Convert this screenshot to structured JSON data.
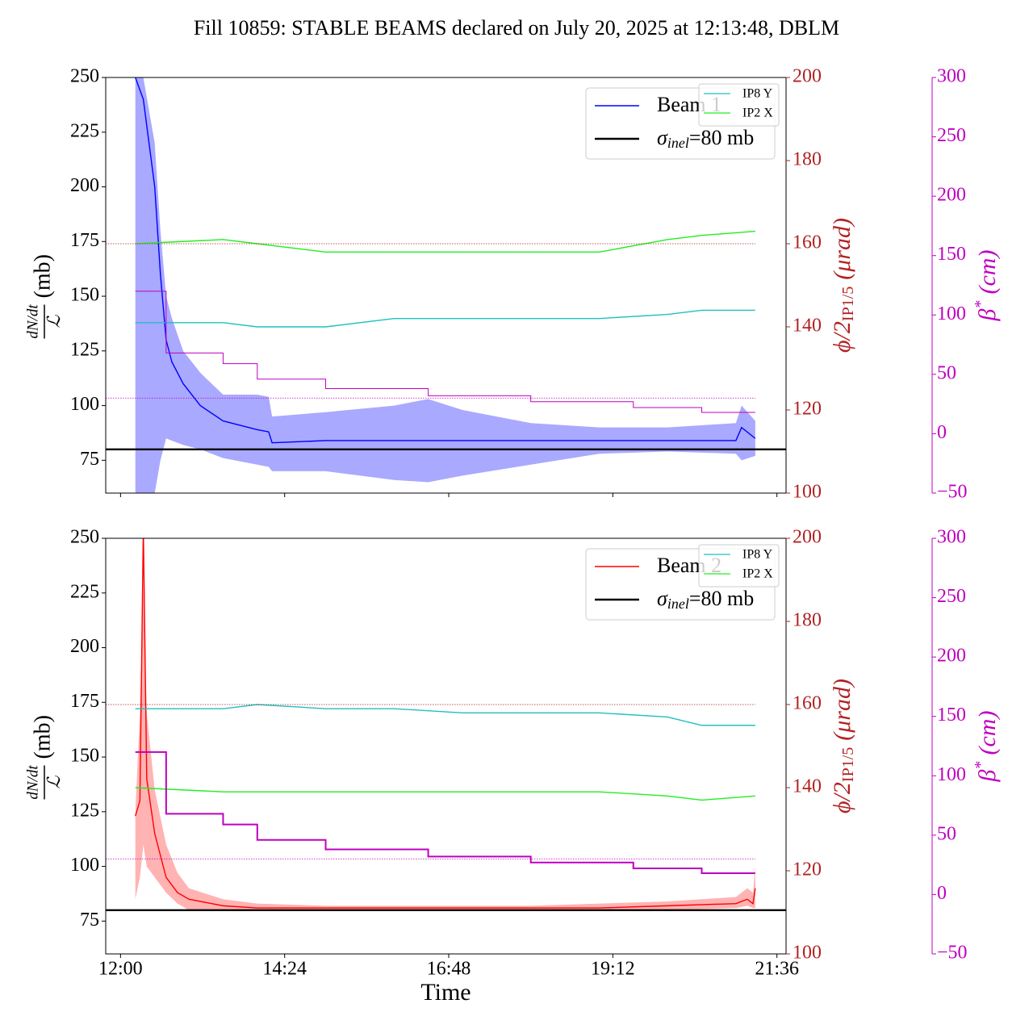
{
  "chart_data": [
    {
      "type": "line",
      "title": "Fill 10859: STABLE BEAMS declared on July 20, 2025 at 12:13:48, DBLM",
      "xlim": [
        "11:47",
        "21:44"
      ],
      "xticks": [
        "12:00",
        "14:24",
        "16:48",
        "19:12",
        "21:36"
      ],
      "xtick_labels": false,
      "ylim": [
        60,
        250
      ],
      "yticks": [
        75,
        100,
        125,
        150,
        175,
        200,
        225,
        250
      ],
      "y2lim": [
        100,
        200
      ],
      "y2ticks": [
        100,
        120,
        140,
        160,
        180,
        200
      ],
      "y3lim": [
        -50,
        300
      ],
      "y3ticks": [
        {
          "value": -50,
          "label": "−50"
        },
        0,
        50,
        100,
        150,
        200,
        250,
        300
      ],
      "ylabel": {
        "numerator": "dN/dt",
        "denominator": "ℒ",
        "unit": "(mb)"
      },
      "y2label": {
        "main": "ϕ/2",
        "sub": "IP1/5",
        "unit": "(μrad)"
      },
      "y3label": {
        "main": "β",
        "sup": "*",
        "unit": "(cm)"
      },
      "reference": {
        "symbol": "σ",
        "sub": "inel",
        "label": "=80 mb",
        "value": 80,
        "color": "#000000"
      },
      "series": [
        {
          "name": "Beam 1",
          "color": "#0000ff",
          "band_color": "#8c8cff",
          "axis": "y",
          "x": [
            "12:13",
            "12:20",
            "12:30",
            "12:35",
            "12:40",
            "12:45",
            "12:55",
            "13:10",
            "13:30",
            "14:00",
            "14:10",
            "14:13",
            "15:00",
            "16:00",
            "16:30",
            "17:00",
            "18:00",
            "19:00",
            "20:00",
            "21:00",
            "21:05",
            "21:17"
          ],
          "values": [
            250,
            240,
            200,
            160,
            130,
            120,
            110,
            100,
            93,
            89,
            88,
            83,
            84,
            84,
            84,
            84,
            84,
            84,
            84,
            84,
            90,
            85
          ],
          "band_upper": [
            250,
            250,
            220,
            180,
            150,
            140,
            125,
            115,
            105,
            105,
            104,
            95,
            97,
            100,
            103,
            98,
            92,
            90,
            90,
            92,
            100,
            93
          ],
          "band_lower": [
            60,
            60,
            60,
            75,
            85,
            84,
            82,
            80,
            76,
            73,
            72,
            70,
            70,
            66,
            65,
            68,
            73,
            78,
            79,
            78,
            75,
            77
          ]
        },
        {
          "name": "IP8 Y",
          "color": "#20c0c0",
          "axis": "y2",
          "x": [
            "12:13",
            "13:30",
            "14:00",
            "15:00",
            "16:00",
            "17:00",
            "18:00",
            "19:00",
            "20:00",
            "20:30",
            "21:17"
          ],
          "values": [
            141,
            141,
            140,
            140,
            142,
            142,
            142,
            142,
            143,
            144,
            144
          ]
        },
        {
          "name": "IP2 X",
          "color": "#22ee22",
          "axis": "y2",
          "x": [
            "12:13",
            "13:30",
            "14:00",
            "15:00",
            "16:00",
            "17:00",
            "18:00",
            "19:00",
            "20:00",
            "20:30",
            "21:17"
          ],
          "values": [
            160,
            161,
            160,
            158,
            158,
            158,
            158,
            158,
            161,
            162,
            163
          ]
        },
        {
          "color": "#bf00bf",
          "axis": "y3",
          "steps": true,
          "width": 1,
          "x": [
            "12:13",
            "12:35",
            "12:40",
            "13:30",
            "14:00",
            "15:00",
            "16:30",
            "18:00",
            "19:30",
            "20:30",
            "21:17"
          ],
          "values": [
            120,
            120,
            68,
            59,
            46,
            38,
            32,
            27,
            22,
            18,
            18
          ]
        }
      ],
      "hlines": [
        {
          "value": 160,
          "axis": "y2",
          "color": "#b22222"
        },
        {
          "value": 30,
          "axis": "y3",
          "color": "#bf00bf"
        }
      ]
    },
    {
      "type": "line",
      "xlabel": "Time",
      "xlim": [
        "11:47",
        "21:44"
      ],
      "xticks": [
        "12:00",
        "14:24",
        "16:48",
        "19:12",
        "21:36"
      ],
      "xtick_labels": true,
      "ylim": [
        60,
        250
      ],
      "yticks": [
        75,
        100,
        125,
        150,
        175,
        200,
        225,
        250
      ],
      "y2lim": [
        100,
        200
      ],
      "y2ticks": [
        100,
        120,
        140,
        160,
        180,
        200
      ],
      "y3lim": [
        -50,
        300
      ],
      "y3ticks": [
        {
          "value": -50,
          "label": "−50"
        },
        0,
        50,
        100,
        150,
        200,
        250,
        300
      ],
      "ylabel": {
        "numerator": "dN/dt",
        "denominator": "ℒ",
        "unit": "(mb)"
      },
      "y2label": {
        "main": "ϕ/2",
        "sub": "IP1/5",
        "unit": "(μrad)"
      },
      "y3label": {
        "main": "β",
        "sup": "*",
        "unit": "(cm)"
      },
      "reference": {
        "symbol": "σ",
        "sub": "inel",
        "label": "=80 mb",
        "value": 80,
        "color": "#000000"
      },
      "series": [
        {
          "name": "Beam 2",
          "color": "#ff0000",
          "band_color": "#ff9a9a",
          "axis": "y",
          "x": [
            "12:13",
            "12:17",
            "12:20",
            "12:23",
            "12:30",
            "12:40",
            "12:50",
            "13:00",
            "13:30",
            "14:00",
            "15:00",
            "16:00",
            "17:00",
            "18:00",
            "19:00",
            "20:00",
            "21:00",
            "21:10",
            "21:15",
            "21:17"
          ],
          "values": [
            123,
            130,
            255,
            140,
            115,
            95,
            88,
            85,
            82,
            81,
            81,
            81,
            81,
            81,
            81,
            82,
            83,
            85,
            83,
            90
          ],
          "band_upper": [
            125,
            170,
            230,
            170,
            135,
            110,
            97,
            90,
            85,
            83,
            82,
            82,
            82,
            82,
            83,
            84,
            86,
            90,
            88,
            100
          ],
          "band_lower": [
            85,
            95,
            110,
            100,
            95,
            88,
            83,
            80,
            80,
            80,
            80,
            80,
            80,
            80,
            80,
            80,
            81,
            82,
            81,
            81
          ]
        },
        {
          "name": "IP8 Y",
          "color": "#20c0c0",
          "axis": "y2",
          "x": [
            "12:13",
            "13:30",
            "14:00",
            "15:00",
            "16:00",
            "17:00",
            "18:00",
            "19:00",
            "20:00",
            "20:30",
            "21:17"
          ],
          "values": [
            159,
            159,
            160,
            159,
            159,
            158,
            158,
            158,
            157,
            155,
            155
          ]
        },
        {
          "name": "IP2 X",
          "color": "#22ee22",
          "axis": "y2",
          "x": [
            "12:13",
            "13:30",
            "14:00",
            "15:00",
            "16:00",
            "17:00",
            "18:00",
            "19:00",
            "20:00",
            "20:30",
            "21:17"
          ],
          "values": [
            140,
            139,
            139,
            139,
            139,
            139,
            139,
            139,
            138,
            137,
            138
          ]
        },
        {
          "color": "#bf00bf",
          "axis": "y3",
          "steps": true,
          "width": 2,
          "x": [
            "12:13",
            "12:35",
            "12:40",
            "13:30",
            "14:00",
            "15:00",
            "16:30",
            "18:00",
            "19:30",
            "20:30",
            "21:17"
          ],
          "values": [
            120,
            120,
            68,
            59,
            46,
            38,
            32,
            27,
            22,
            18,
            18
          ]
        }
      ],
      "hlines": [
        {
          "value": 160,
          "axis": "y2",
          "color": "#b22222"
        },
        {
          "value": 30,
          "axis": "y3",
          "color": "#bf00bf"
        }
      ]
    }
  ]
}
